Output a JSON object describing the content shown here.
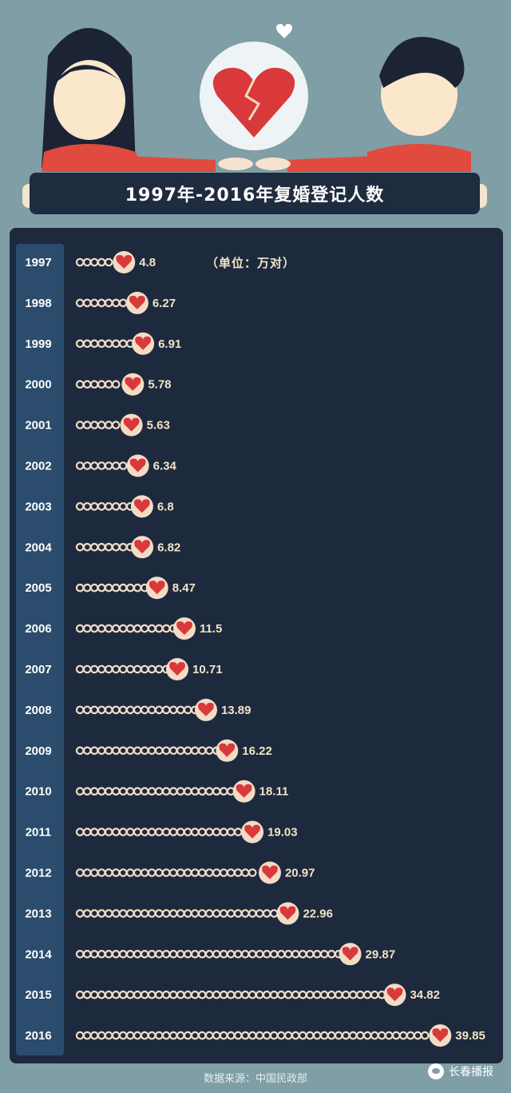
{
  "title": "1997年-2016年复婚登记人数",
  "unit_note": "（单位：万对）",
  "source": "数据来源：中国民政部",
  "brand": "长春播报",
  "colors": {
    "background": "#7f9ea6",
    "panel": "#1d2a3e",
    "heart": "#d9393a",
    "bead": "#f3dcc6",
    "label": "#f1e4c6"
  },
  "chart_data": {
    "type": "bar",
    "title": "1997年-2016年复婚登记人数",
    "ylabel": "（单位：万对）",
    "categories": [
      "1997",
      "1998",
      "1999",
      "2000",
      "2001",
      "2002",
      "2003",
      "2004",
      "2005",
      "2006",
      "2007",
      "2008",
      "2009",
      "2010",
      "2011",
      "2012",
      "2013",
      "2014",
      "2015",
      "2016"
    ],
    "values": [
      4.8,
      6.27,
      6.91,
      5.78,
      5.63,
      6.34,
      6.8,
      6.82,
      8.47,
      11.5,
      10.71,
      13.89,
      16.22,
      18.11,
      19.03,
      20.97,
      22.96,
      29.87,
      34.82,
      39.85
    ],
    "value_labels": [
      "4.8",
      "6.27",
      "6.91",
      "5.78",
      "5.63",
      "6.34",
      "6.8",
      "6.82",
      "8.47",
      "11.5",
      "10.71",
      "13.89",
      "16.22",
      "18.11",
      "19.03",
      "20.97",
      "22.96",
      "29.87",
      "34.82",
      "39.85"
    ],
    "orientation": "horizontal",
    "grid": false
  }
}
